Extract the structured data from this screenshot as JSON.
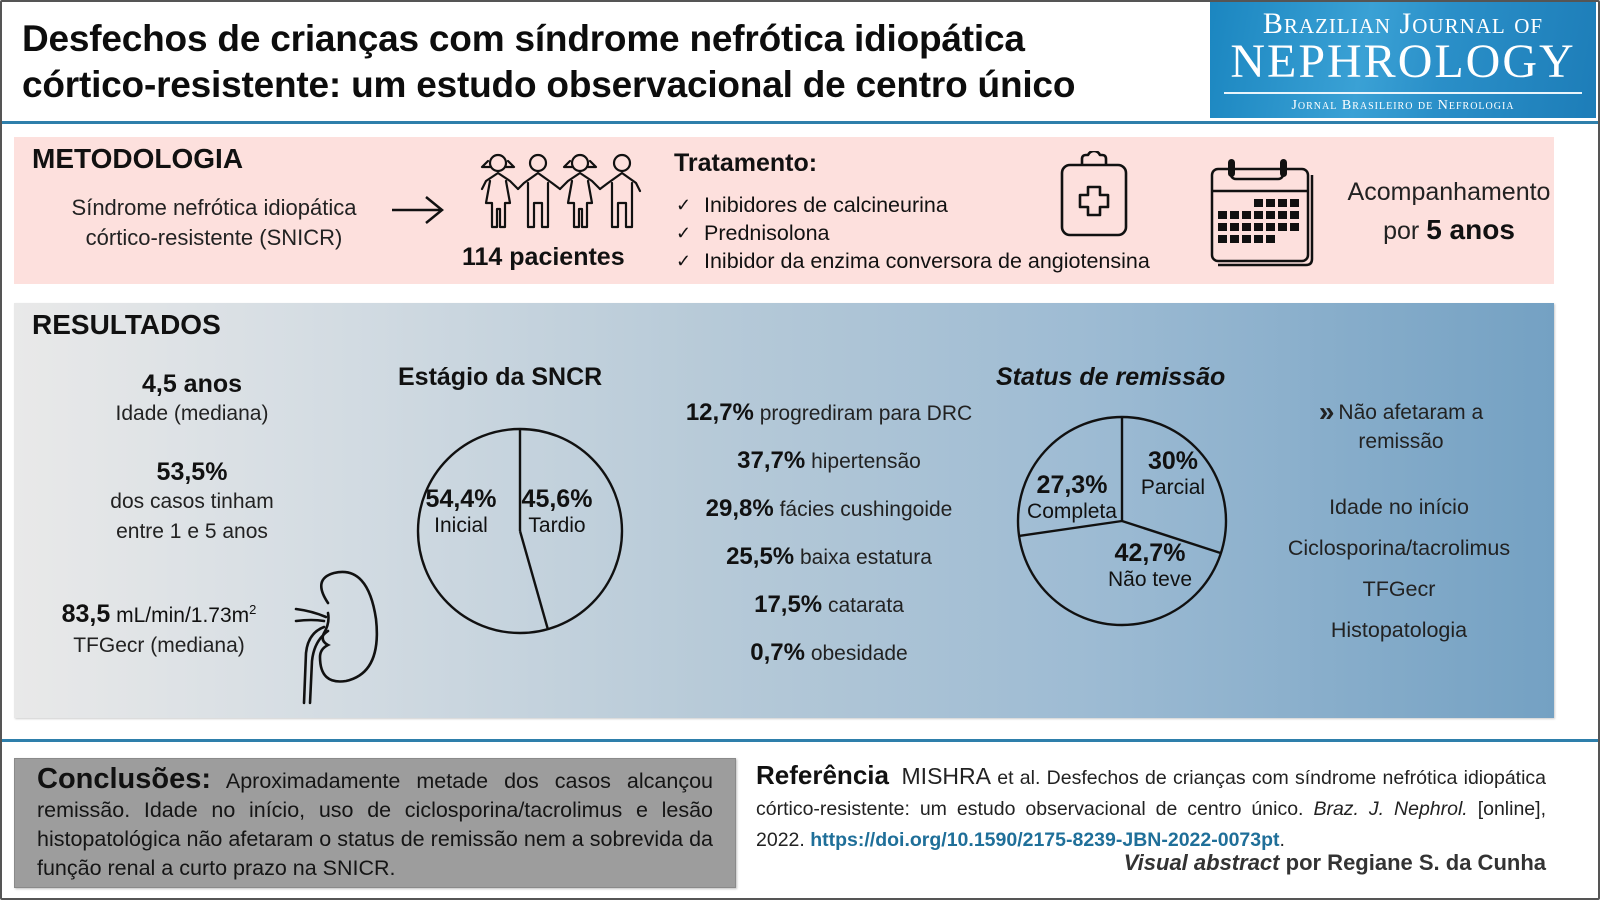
{
  "header": {
    "title_line1": "Desfechos de crianças com síndrome nefrótica idiopática",
    "title_line2": "córtico-resistente: um estudo observacional de centro único",
    "logo": {
      "line1": "Brazilian Journal of",
      "line2": "NEPHROLOGY",
      "line3": "Jornal Brasileiro de Nefrologia"
    }
  },
  "metodologia": {
    "heading": "METODOLOGIA",
    "description_line1": "Síndrome nefrótica idiopática",
    "description_line2": "córtico-resistente (SNICR)",
    "patients": "114 pacientes",
    "treatment_title": "Tratamento:",
    "treatments": [
      "Inibidores de calcineurina",
      "Prednisolona",
      "Inibidor da enzima conversora de angiotensina"
    ],
    "check_symbol": "✓",
    "followup_line1": "Acompanhamento",
    "followup_prefix": "por",
    "followup_bold": "5 anos"
  },
  "resultados": {
    "heading": "RESULTADOS",
    "age_value": "4,5 anos",
    "age_label": "Idade (mediana)",
    "pct_value": "53,5%",
    "pct_label_line1": "dos casos tinham",
    "pct_label_line2": "entre 1 e 5 anos",
    "gfr_value": "83,5",
    "gfr_unit": "mL/min/1.73m",
    "gfr_unit_sup": "2",
    "gfr_label": "TFGecr (mediana)",
    "outcomes": [
      {
        "pct": "12,7%",
        "label": "progrediram para DRC"
      },
      {
        "pct": "37,7%",
        "label": "hipertensão"
      },
      {
        "pct": "29,8%",
        "label": "fácies cushingoide"
      },
      {
        "pct": "25,5%",
        "label": "baixa estatura"
      },
      {
        "pct": "17,5%",
        "label": "catarata"
      },
      {
        "pct": "0,7%",
        "label": "obesidade"
      }
    ],
    "no_effect_title_line1": "Não afetaram a",
    "no_effect_title_line2": "remissão",
    "no_effect_items": [
      "Idade no início",
      "Ciclosporina/tacrolimus",
      "TFGecr",
      "Histopatologia"
    ]
  },
  "chart_data": [
    {
      "type": "pie",
      "title": "Estágio da SNCR",
      "categories": [
        "Tardio",
        "Inicial"
      ],
      "values": [
        45.6,
        54.4
      ],
      "labels": [
        "45,6%",
        "54,4%"
      ],
      "start": "top",
      "direction": "clockwise"
    },
    {
      "type": "pie",
      "title": "Status de remissão",
      "categories": [
        "Parcial",
        "Não teve",
        "Completa"
      ],
      "values": [
        30,
        42.7,
        27.3
      ],
      "labels": [
        "30%",
        "42,7%",
        "27,3%"
      ],
      "start": "top",
      "direction": "clockwise"
    }
  ],
  "conclusoes": {
    "label": "Conclusões:",
    "text": "Aproximadamente metade dos casos alcançou remissão. Idade no início, uso de ciclosporina/tacrolimus e lesão histopatológica não afetaram o status de remissão nem a sobrevida da função renal a curto prazo na SNICR."
  },
  "referencia": {
    "label": "Referência",
    "author": "MISHRA",
    "text": "et al. Desfechos de crianças com síndrome nefrótica idiopática córtico-resistente: um estudo observacional de centro único.",
    "journal": "Braz. J. Nephrol.",
    "online": "[online], 2022.",
    "doi": "https://doi.org/10.1590/2175-8239-JBN-2022-0073pt",
    "credit_italic": "Visual abstract",
    "credit_rest": "por Regiane S. da Cunha"
  },
  "colors": {
    "accent_blue": "#2e7fab",
    "metodologia_bg": "#fde0dd",
    "conclusoes_bg": "#9d9d9d",
    "doi_link": "#1f6f99"
  }
}
